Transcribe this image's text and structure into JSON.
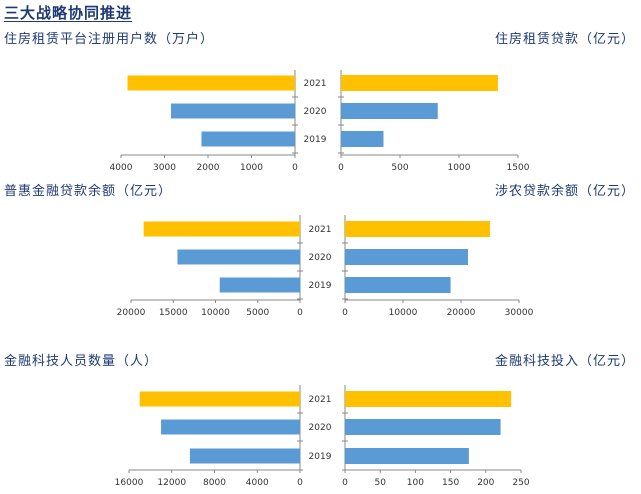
{
  "page_title": "三大战略协同推进",
  "colors": {
    "highlight": "#ffc000",
    "base": "#5b9bd5",
    "axis": "#888888",
    "title": "#1f3a73"
  },
  "chart_data": [
    {
      "type": "bar",
      "orientation": "horizontal",
      "direction": "reversed",
      "title": "住房租赁平台注册用户数（万户）",
      "categories": [
        "2021",
        "2020",
        "2019"
      ],
      "values": [
        3850,
        2850,
        2150
      ],
      "xlim": [
        0,
        4000
      ],
      "ticks": [
        4000,
        3000,
        2000,
        1000,
        0
      ],
      "tick_labels": [
        "4000",
        "3000",
        "2000",
        "1000",
        "0"
      ]
    },
    {
      "type": "bar",
      "orientation": "horizontal",
      "title": "住房租赁贷款（亿元）",
      "categories": [
        "2021",
        "2020",
        "2019"
      ],
      "values": [
        1330,
        820,
        360
      ],
      "xlim": [
        0,
        1500
      ],
      "ticks": [
        0,
        500,
        1000,
        1500
      ],
      "tick_labels": [
        "0",
        "500",
        "1000",
        "1500"
      ]
    },
    {
      "type": "bar",
      "orientation": "horizontal",
      "direction": "reversed",
      "title": "普惠金融贷款余额（亿元）",
      "categories": [
        "2021",
        "2020",
        "2019"
      ],
      "values": [
        18500,
        14500,
        9500
      ],
      "xlim": [
        0,
        20000
      ],
      "ticks": [
        20000,
        15000,
        10000,
        5000,
        0
      ],
      "tick_labels": [
        "20000",
        "15000",
        "10000",
        "5000",
        "0"
      ]
    },
    {
      "type": "bar",
      "orientation": "horizontal",
      "title": "涉农贷款余额（亿元）",
      "categories": [
        "2021",
        "2020",
        "2019"
      ],
      "values": [
        25000,
        21200,
        18200
      ],
      "xlim": [
        0,
        30000
      ],
      "ticks": [
        0,
        10000,
        20000,
        30000
      ],
      "tick_labels": [
        "0",
        "10000",
        "20000",
        "30000"
      ]
    },
    {
      "type": "bar",
      "orientation": "horizontal",
      "direction": "reversed",
      "title": "金融科技人员数量（人）",
      "categories": [
        "2021",
        "2020",
        "2019"
      ],
      "values": [
        15000,
        13000,
        10300
      ],
      "xlim": [
        0,
        16000
      ],
      "ticks": [
        16000,
        12000,
        8000,
        4000,
        0
      ],
      "tick_labels": [
        "16000",
        "12000",
        "8000",
        "4000",
        "0"
      ]
    },
    {
      "type": "bar",
      "orientation": "horizontal",
      "title": "金融科技投入（亿元）",
      "categories": [
        "2021",
        "2020",
        "2019"
      ],
      "values": [
        236,
        221,
        176
      ],
      "xlim": [
        0,
        250
      ],
      "ticks": [
        0,
        50,
        100,
        150,
        200,
        250
      ],
      "tick_labels": [
        "0",
        "50",
        "100",
        "150",
        "200",
        "250"
      ]
    }
  ]
}
